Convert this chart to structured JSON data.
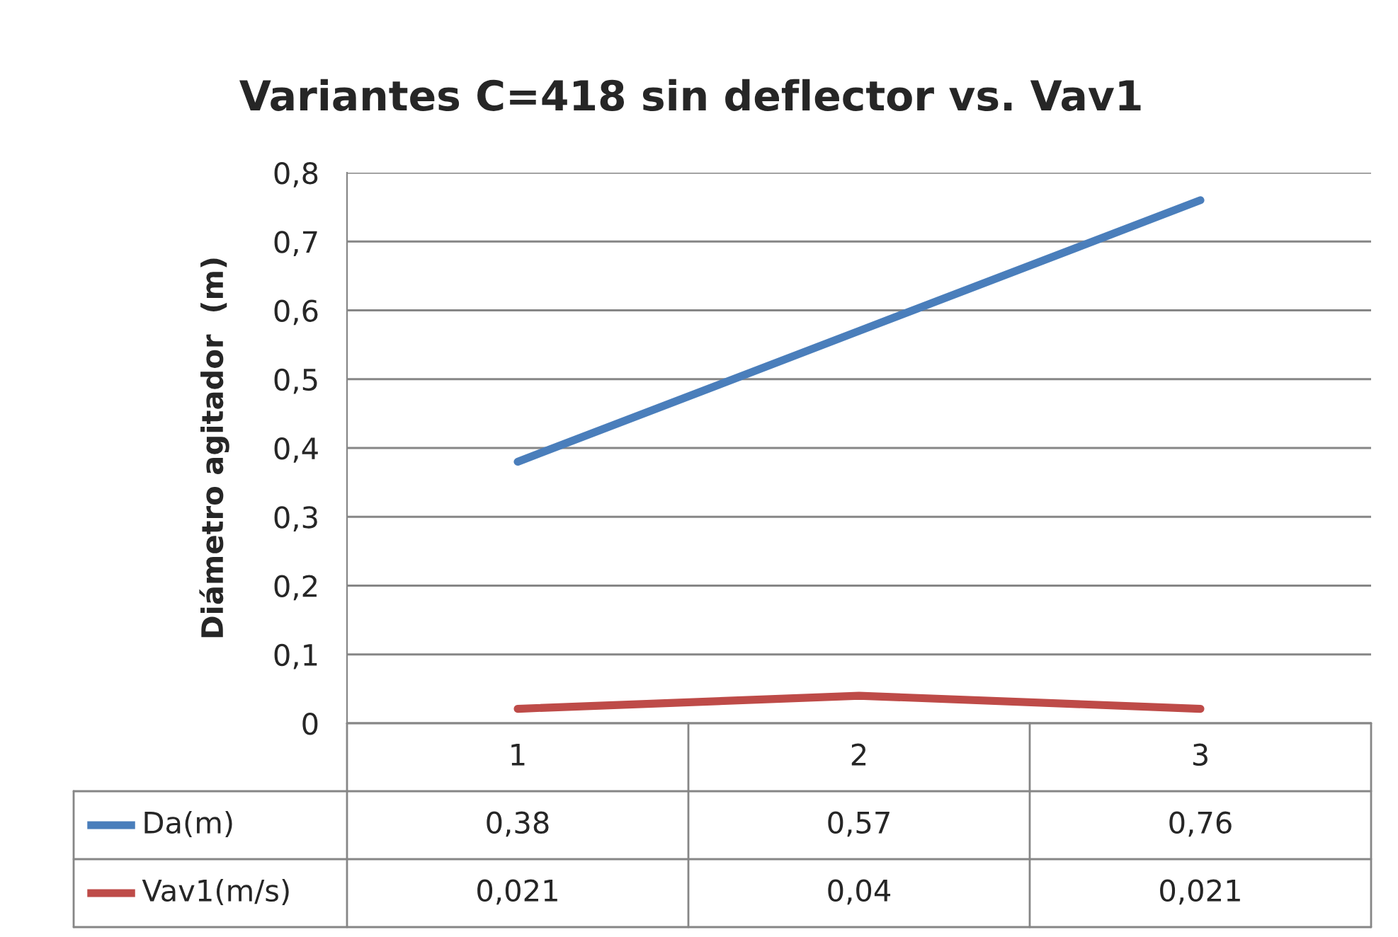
{
  "chart_data": {
    "type": "line",
    "title": "Variantes C=418 sin deflector vs. Vav1",
    "ylabel": "Diámetro agitador  (m)",
    "categories": [
      "1",
      "2",
      "3"
    ],
    "series": [
      {
        "name": "Da(m)",
        "color": "#4a7ebb",
        "values": [
          0.38,
          0.57,
          0.76
        ],
        "value_labels": [
          "0,38",
          "0,57",
          "0,76"
        ]
      },
      {
        "name": "Vav1(m/s)",
        "color": "#be4b48",
        "values": [
          0.021,
          0.04,
          0.021
        ],
        "value_labels": [
          "0,021",
          "0,04",
          "0,021"
        ]
      }
    ],
    "ylim": [
      0,
      0.8
    ],
    "yticks": [
      {
        "value": 0,
        "label": "0"
      },
      {
        "value": 0.1,
        "label": "0,1"
      },
      {
        "value": 0.2,
        "label": "0,2"
      },
      {
        "value": 0.3,
        "label": "0,3"
      },
      {
        "value": 0.4,
        "label": "0,4"
      },
      {
        "value": 0.5,
        "label": "0,5"
      },
      {
        "value": 0.6,
        "label": "0,6"
      },
      {
        "value": 0.7,
        "label": "0,7"
      },
      {
        "value": 0.8,
        "label": "0,8"
      }
    ],
    "grid": "y",
    "legend": "bottom",
    "marker": "none",
    "line_style": "solid"
  }
}
